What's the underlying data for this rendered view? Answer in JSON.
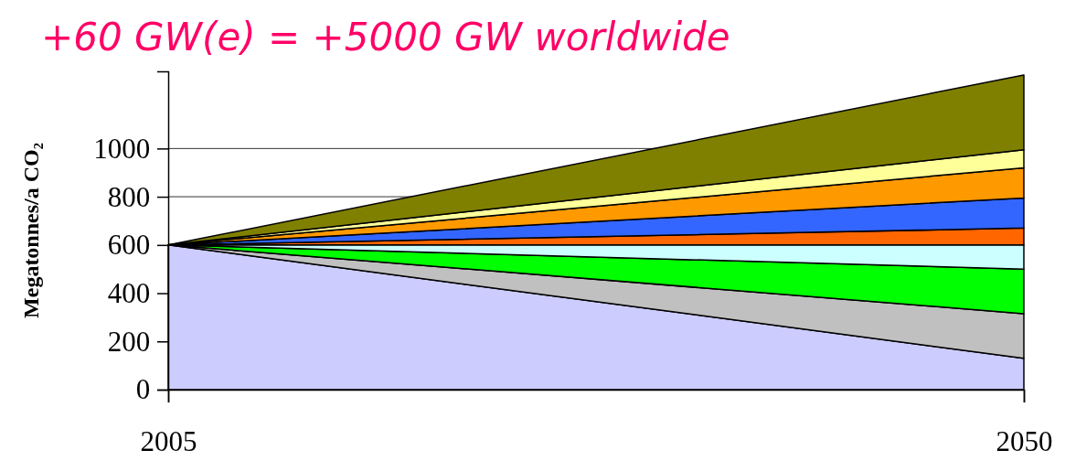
{
  "chart_data": {
    "type": "area",
    "stacked": true,
    "title": "+60 GW(e) = +5000 GW worldwide",
    "ylabel": "Megatonnes/a CO₂",
    "x": [
      2005,
      2050
    ],
    "xlim": [
      2005,
      2050
    ],
    "xticks": [
      2005,
      2050
    ],
    "ylim": [
      0,
      1320
    ],
    "yticks": [
      0,
      200,
      400,
      600,
      800,
      1000
    ],
    "grid": "y",
    "series": [
      {
        "color": "#ccccff",
        "values": [
          600,
          130
        ]
      },
      {
        "color": "#c0c0c0",
        "values": [
          0,
          185
        ]
      },
      {
        "color": "#00ff00",
        "values": [
          0,
          185
        ]
      },
      {
        "color": "#ccffff",
        "values": [
          0,
          100
        ]
      },
      {
        "color": "#ff6600",
        "values": [
          0,
          70
        ]
      },
      {
        "color": "#3366ff",
        "values": [
          0,
          125
        ]
      },
      {
        "color": "#ff9900",
        "values": [
          0,
          125
        ]
      },
      {
        "color": "#ffff99",
        "values": [
          0,
          75
        ]
      },
      {
        "color": "#808000",
        "values": [
          0,
          310
        ]
      }
    ]
  }
}
